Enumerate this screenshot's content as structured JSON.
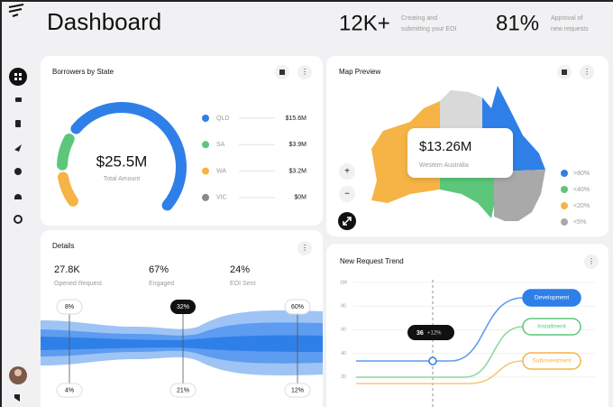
{
  "header": {
    "title": "Dashboard",
    "stats": [
      {
        "value": "12K+",
        "label": [
          "Creating and",
          "submitting your EOI"
        ]
      },
      {
        "value": "81%",
        "label": [
          "Approval of",
          "new requests"
        ]
      }
    ]
  },
  "borrowers": {
    "title": "Borrowers by State",
    "total": "$25.5M",
    "total_label": "Total Amount",
    "legend": [
      {
        "state": "QLD",
        "amount": "$15.6M"
      },
      {
        "state": "SA",
        "amount": "$3.9M"
      },
      {
        "state": "WA",
        "amount": "$3.2M"
      },
      {
        "state": "VIC",
        "amount": "$0M"
      }
    ]
  },
  "map": {
    "title": "Map Preview",
    "amount": "$13.26M",
    "region": "Western Australia",
    "legend": [
      ">80%",
      "<40%",
      "<20%",
      "<5%"
    ]
  },
  "details": {
    "title": "Details",
    "stats": [
      {
        "value": "27.8K",
        "label": "Opened Request"
      },
      {
        "value": "67%",
        "label": "Engaged"
      },
      {
        "value": "24%",
        "label": "EOI Sent"
      }
    ],
    "flow_top": [
      "8%",
      "32%",
      "60%"
    ],
    "flow_bottom": [
      "4%",
      "21%",
      "12%"
    ]
  },
  "trend": {
    "title": "New Request Trend",
    "y_labels": [
      "100",
      "80",
      "60",
      "40",
      "20"
    ],
    "tooltip": "36",
    "tooltip_change": "+12%",
    "series": [
      "Development",
      "Installment",
      "Subinvestment"
    ]
  }
}
